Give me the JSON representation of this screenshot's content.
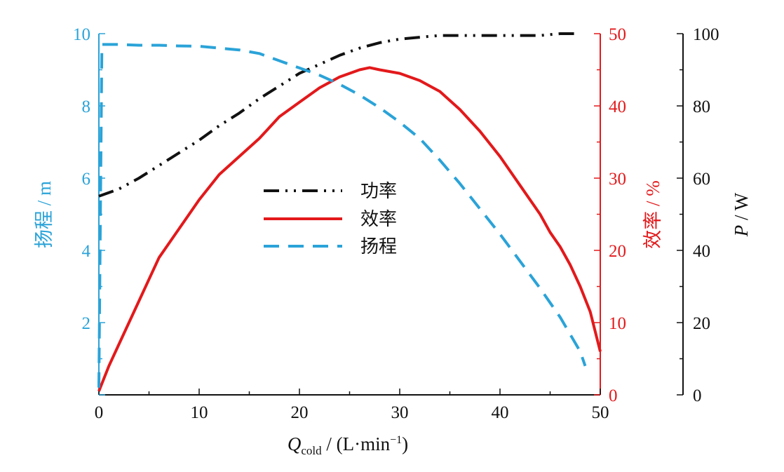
{
  "colors": {
    "head": "#2aa3d8",
    "efficiency": "#e3191b",
    "power": "#111111",
    "frame": "#111111"
  },
  "chart_data": {
    "type": "line",
    "x_axis": {
      "label_main": "Q",
      "label_sub": "cold",
      "label_unit_pre": " / (L·min",
      "label_sup": "−1",
      "label_unit_post": ")",
      "range": [
        0,
        50
      ],
      "ticks": [
        0,
        10,
        20,
        30,
        40,
        50
      ],
      "tick_labels": [
        "0",
        "10",
        "20",
        "30",
        "40",
        "50"
      ]
    },
    "y_axes": {
      "head": {
        "label": "扬程 / m",
        "range": [
          0,
          10
        ],
        "ticks": [
          2,
          4,
          6,
          8,
          10
        ],
        "tick_labels": [
          "2",
          "4",
          "6",
          "8",
          "10"
        ]
      },
      "efficiency": {
        "label": "效率 / %",
        "range": [
          0,
          50
        ],
        "ticks": [
          0,
          10,
          20,
          30,
          40,
          50
        ],
        "tick_labels": [
          "0",
          "10",
          "20",
          "30",
          "40",
          "50"
        ]
      },
      "power": {
        "label_italic": "P",
        "label_rest": " / W",
        "range": [
          0,
          100
        ],
        "ticks": [
          0,
          20,
          40,
          60,
          80,
          100
        ],
        "tick_labels": [
          "0",
          "20",
          "40",
          "60",
          "80",
          "100"
        ]
      }
    },
    "legend": {
      "position": "center-left",
      "entries": [
        "功率",
        "效率",
        "扬程"
      ]
    },
    "series": [
      {
        "name": "功率",
        "axis": "power",
        "style": "dash-dot-dot",
        "x": [
          0,
          2,
          4,
          6,
          8,
          10,
          12,
          14,
          16,
          18,
          20,
          22,
          24,
          26,
          28,
          30,
          32,
          34,
          36,
          40,
          44,
          46,
          48
        ],
        "y": [
          55,
          57,
          60,
          63.5,
          67,
          70.5,
          74.5,
          78,
          82,
          85.5,
          89,
          91.5,
          94,
          96,
          97.5,
          98.5,
          99,
          99.5,
          99.5,
          99.5,
          99.5,
          100,
          100
        ]
      },
      {
        "name": "效率",
        "axis": "efficiency",
        "style": "solid",
        "x": [
          0,
          1,
          2,
          3,
          4,
          5,
          6,
          8,
          10,
          12,
          14,
          16,
          18,
          20,
          22,
          24,
          26,
          27,
          28,
          30,
          32,
          34,
          36,
          38,
          40,
          42,
          44,
          45,
          46,
          47,
          48,
          49,
          50
        ],
        "y": [
          0.5,
          4,
          7,
          10,
          13,
          16,
          19,
          23,
          27,
          30.5,
          33,
          35.5,
          38.5,
          40.5,
          42.5,
          44,
          45,
          45.3,
          45,
          44.5,
          43.5,
          42,
          39.5,
          36.5,
          33,
          29,
          25,
          22.5,
          20.5,
          18,
          15,
          11.5,
          6
        ]
      },
      {
        "name": "扬程",
        "axis": "head",
        "style": "dashed",
        "x": [
          0,
          0.3,
          1,
          2,
          4,
          6,
          8,
          10,
          12,
          14,
          16,
          18,
          20,
          22,
          24,
          26,
          28,
          30,
          32,
          34,
          36,
          38,
          40,
          42,
          44,
          46,
          48,
          48.5
        ],
        "y": [
          0.2,
          9.7,
          9.7,
          9.7,
          9.68,
          9.68,
          9.66,
          9.65,
          9.6,
          9.55,
          9.45,
          9.25,
          9.05,
          8.85,
          8.6,
          8.3,
          7.95,
          7.55,
          7.1,
          6.5,
          5.85,
          5.15,
          4.45,
          3.7,
          2.95,
          2.15,
          1.2,
          0.8
        ]
      }
    ]
  }
}
